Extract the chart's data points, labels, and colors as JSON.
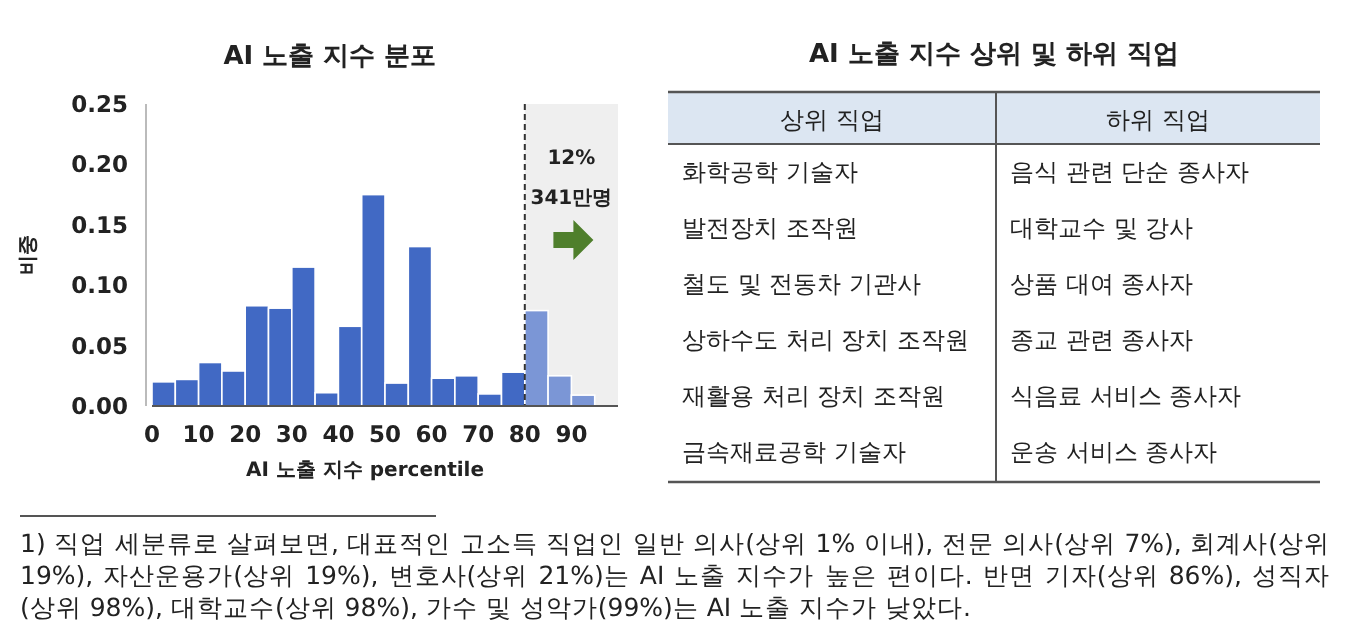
{
  "chart_data": [
    {
      "type": "histogram",
      "title": "AI 노출 지수 분포",
      "xlabel": "AI 노출 지수 percentile",
      "ylabel": "비중",
      "bins": [
        0,
        5,
        10,
        15,
        20,
        25,
        30,
        35,
        40,
        45,
        50,
        55,
        60,
        65,
        70,
        75,
        80,
        85,
        90,
        95
      ],
      "values": [
        0.02,
        0.022,
        0.036,
        0.029,
        0.083,
        0.081,
        0.115,
        0.011,
        0.066,
        0.175,
        0.019,
        0.132,
        0.023,
        0.025,
        0.01,
        0.028,
        0.079,
        0.025,
        0.009
      ],
      "colors": [
        "#4169c4",
        "#4169c4",
        "#4169c4",
        "#4169c4",
        "#4169c4",
        "#4169c4",
        "#4169c4",
        "#4169c4",
        "#4169c4",
        "#4169c4",
        "#4169c4",
        "#4169c4",
        "#4169c4",
        "#4169c4",
        "#4169c4",
        "#4169c4",
        "#7b96d6",
        "#7b96d6",
        "#7b96d6"
      ],
      "xlim": [
        0,
        100
      ],
      "xticks": [
        0,
        10,
        20,
        30,
        40,
        50,
        60,
        70,
        80,
        90
      ],
      "ylim": [
        0,
        0.25
      ],
      "yticks": [
        {
          "value": 0,
          "label": "0.00"
        },
        {
          "value": 0.05,
          "label": "0.05"
        },
        {
          "value": 0.1,
          "label": "0.10"
        },
        {
          "value": 0.15,
          "label": "0.15"
        },
        {
          "value": 0.2,
          "label": "0.20"
        },
        {
          "value": 0.25,
          "label": "0.25"
        }
      ],
      "bands": [
        {
          "axis": "x",
          "from": 80,
          "to": 100,
          "color": "#efefef"
        }
      ],
      "ref_lines": [
        {
          "axis": "x",
          "value": 80,
          "color": "#333333",
          "line_style": "dashed"
        }
      ],
      "annotations": [
        "12%",
        "341만명",
        "1) 직업 세분류로 살펴보면, 대표적인 고소득 직업인 일반 의사(상위 1% 이내), 전문 의사(상위 7%), 회계사(상위 19%), 자산운용가(상위 19%), 변호사(상위 21%)는 AI 노출 지수가 높은 편이다. 반면 기자(상위 86%), 성직자(상위 98%), 대학교수(상위 98%), 가수 및 성악가(99%)는 AI 노출 지수가 낮았다."
      ]
    },
    {
      "type": "other",
      "title": "AI 노출 지수 상위 및 하위 직업",
      "categories": [
        "상위 직업",
        "하위 직업"
      ],
      "annotations": [
        "화학공학 기술자",
        "음식 관련 단순 종사자",
        "발전장치 조작원",
        "대학교수 및 강사",
        "철도 및 전동차 기관사",
        "상품 대여 종사자",
        "상하수도 처리 장치 조작원",
        "종교 관련 종사자",
        "재활용 처리 장치 조작원",
        "식음료 서비스 종사자",
        "금속재료공학 기술자",
        "운송 서비스 종사자"
      ]
    }
  ]
}
